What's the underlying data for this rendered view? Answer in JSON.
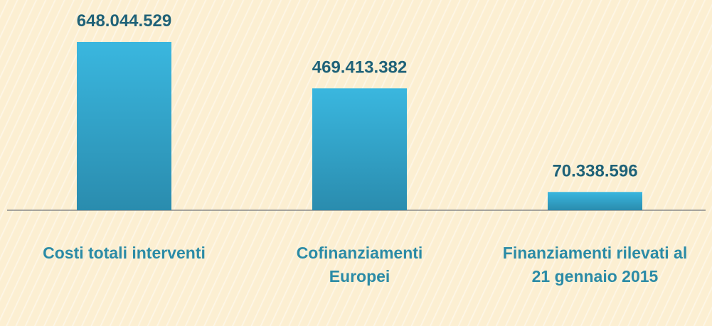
{
  "chart_data": {
    "type": "bar",
    "categories": [
      "Costi totali interventi",
      "Cofinanziamenti Europei",
      "Finanziamenti rilevati al 21 gennaio 2015"
    ],
    "values": [
      648044529,
      469413382,
      70338596
    ],
    "value_labels": [
      "648.044.529",
      "469.413.382",
      "70.338.596"
    ],
    "color": "#33aed6"
  }
}
